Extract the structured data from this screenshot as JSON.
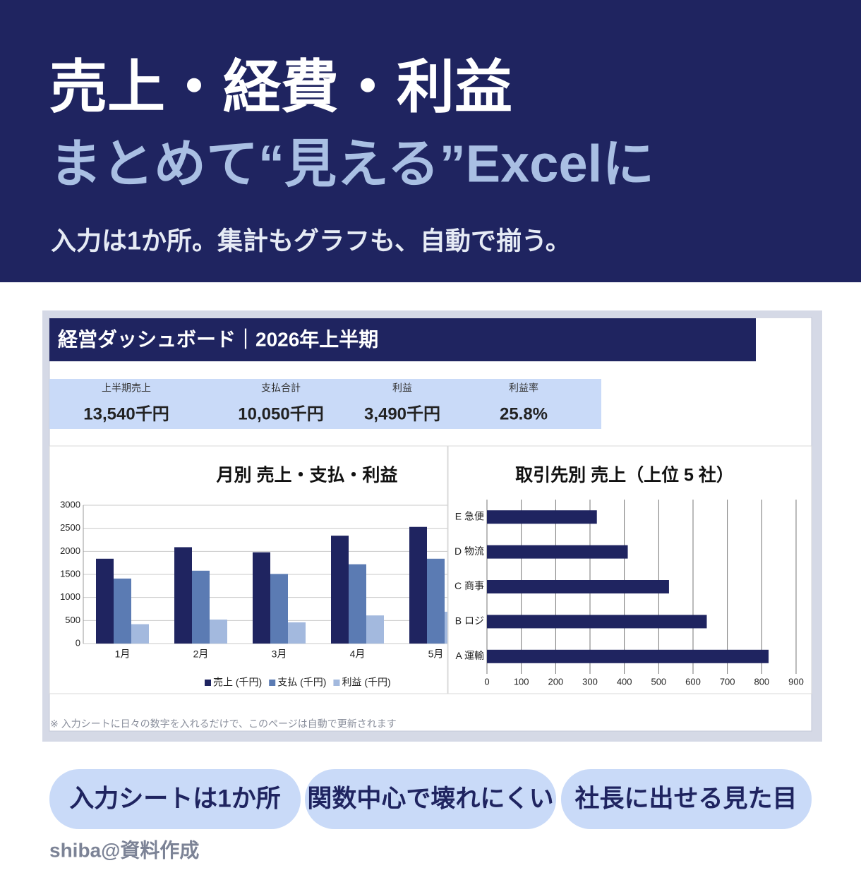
{
  "header": {
    "title": "売上・経費・利益",
    "subtitle": "まとめて“見える”Excelに",
    "tagline": "入力は1か所。集計もグラフも、自動で揃う。"
  },
  "dashboard": {
    "title": "経営ダッシュボード｜2026年上半期",
    "kpis": [
      {
        "label": "上半期売上",
        "value": "13,540千円"
      },
      {
        "label": "支払合計",
        "value": "10,050千円"
      },
      {
        "label": "利益",
        "value": "3,490千円"
      },
      {
        "label": "利益率",
        "value": "25.8%"
      }
    ],
    "note": "※ 入力シートに日々の数字を入れるだけで、このページは自動で更新されます"
  },
  "chart_data": [
    {
      "type": "bar",
      "title": "月別 売上・支払・利益",
      "categories": [
        "1月",
        "2月",
        "3月",
        "4月",
        "5月"
      ],
      "series": [
        {
          "name": "売上 (千円)",
          "color": "#1f2460",
          "values": [
            1840,
            2090,
            1980,
            2340,
            2530
          ]
        },
        {
          "name": "支払 (千円)",
          "color": "#5b7bb3",
          "values": [
            1410,
            1580,
            1510,
            1720,
            1840
          ]
        },
        {
          "name": "利益 (千円)",
          "color": "#a3b9de",
          "values": [
            420,
            520,
            460,
            610,
            690
          ]
        }
      ],
      "ylim": [
        0,
        3000
      ],
      "yticks": [
        0,
        500,
        1000,
        1500,
        2000,
        2500,
        3000
      ],
      "grid": true,
      "legend": "bottom"
    },
    {
      "type": "barh",
      "title": "取引先別 売上（上位 5 社）",
      "categories": [
        "E 急便",
        "D 物流",
        "C 商事",
        "B ロジ",
        "A 運輸"
      ],
      "values": [
        320,
        410,
        530,
        640,
        820
      ],
      "color": "#1f2460",
      "xlim": [
        0,
        900
      ],
      "xticks": [
        0,
        100,
        200,
        300,
        400,
        500,
        600,
        700,
        800,
        900
      ],
      "grid": true
    }
  ],
  "features": [
    "入力シートは1か所",
    "関数中心で壊れにくい",
    "社長に出せる見た目"
  ],
  "credit": "shiba@資料作成"
}
